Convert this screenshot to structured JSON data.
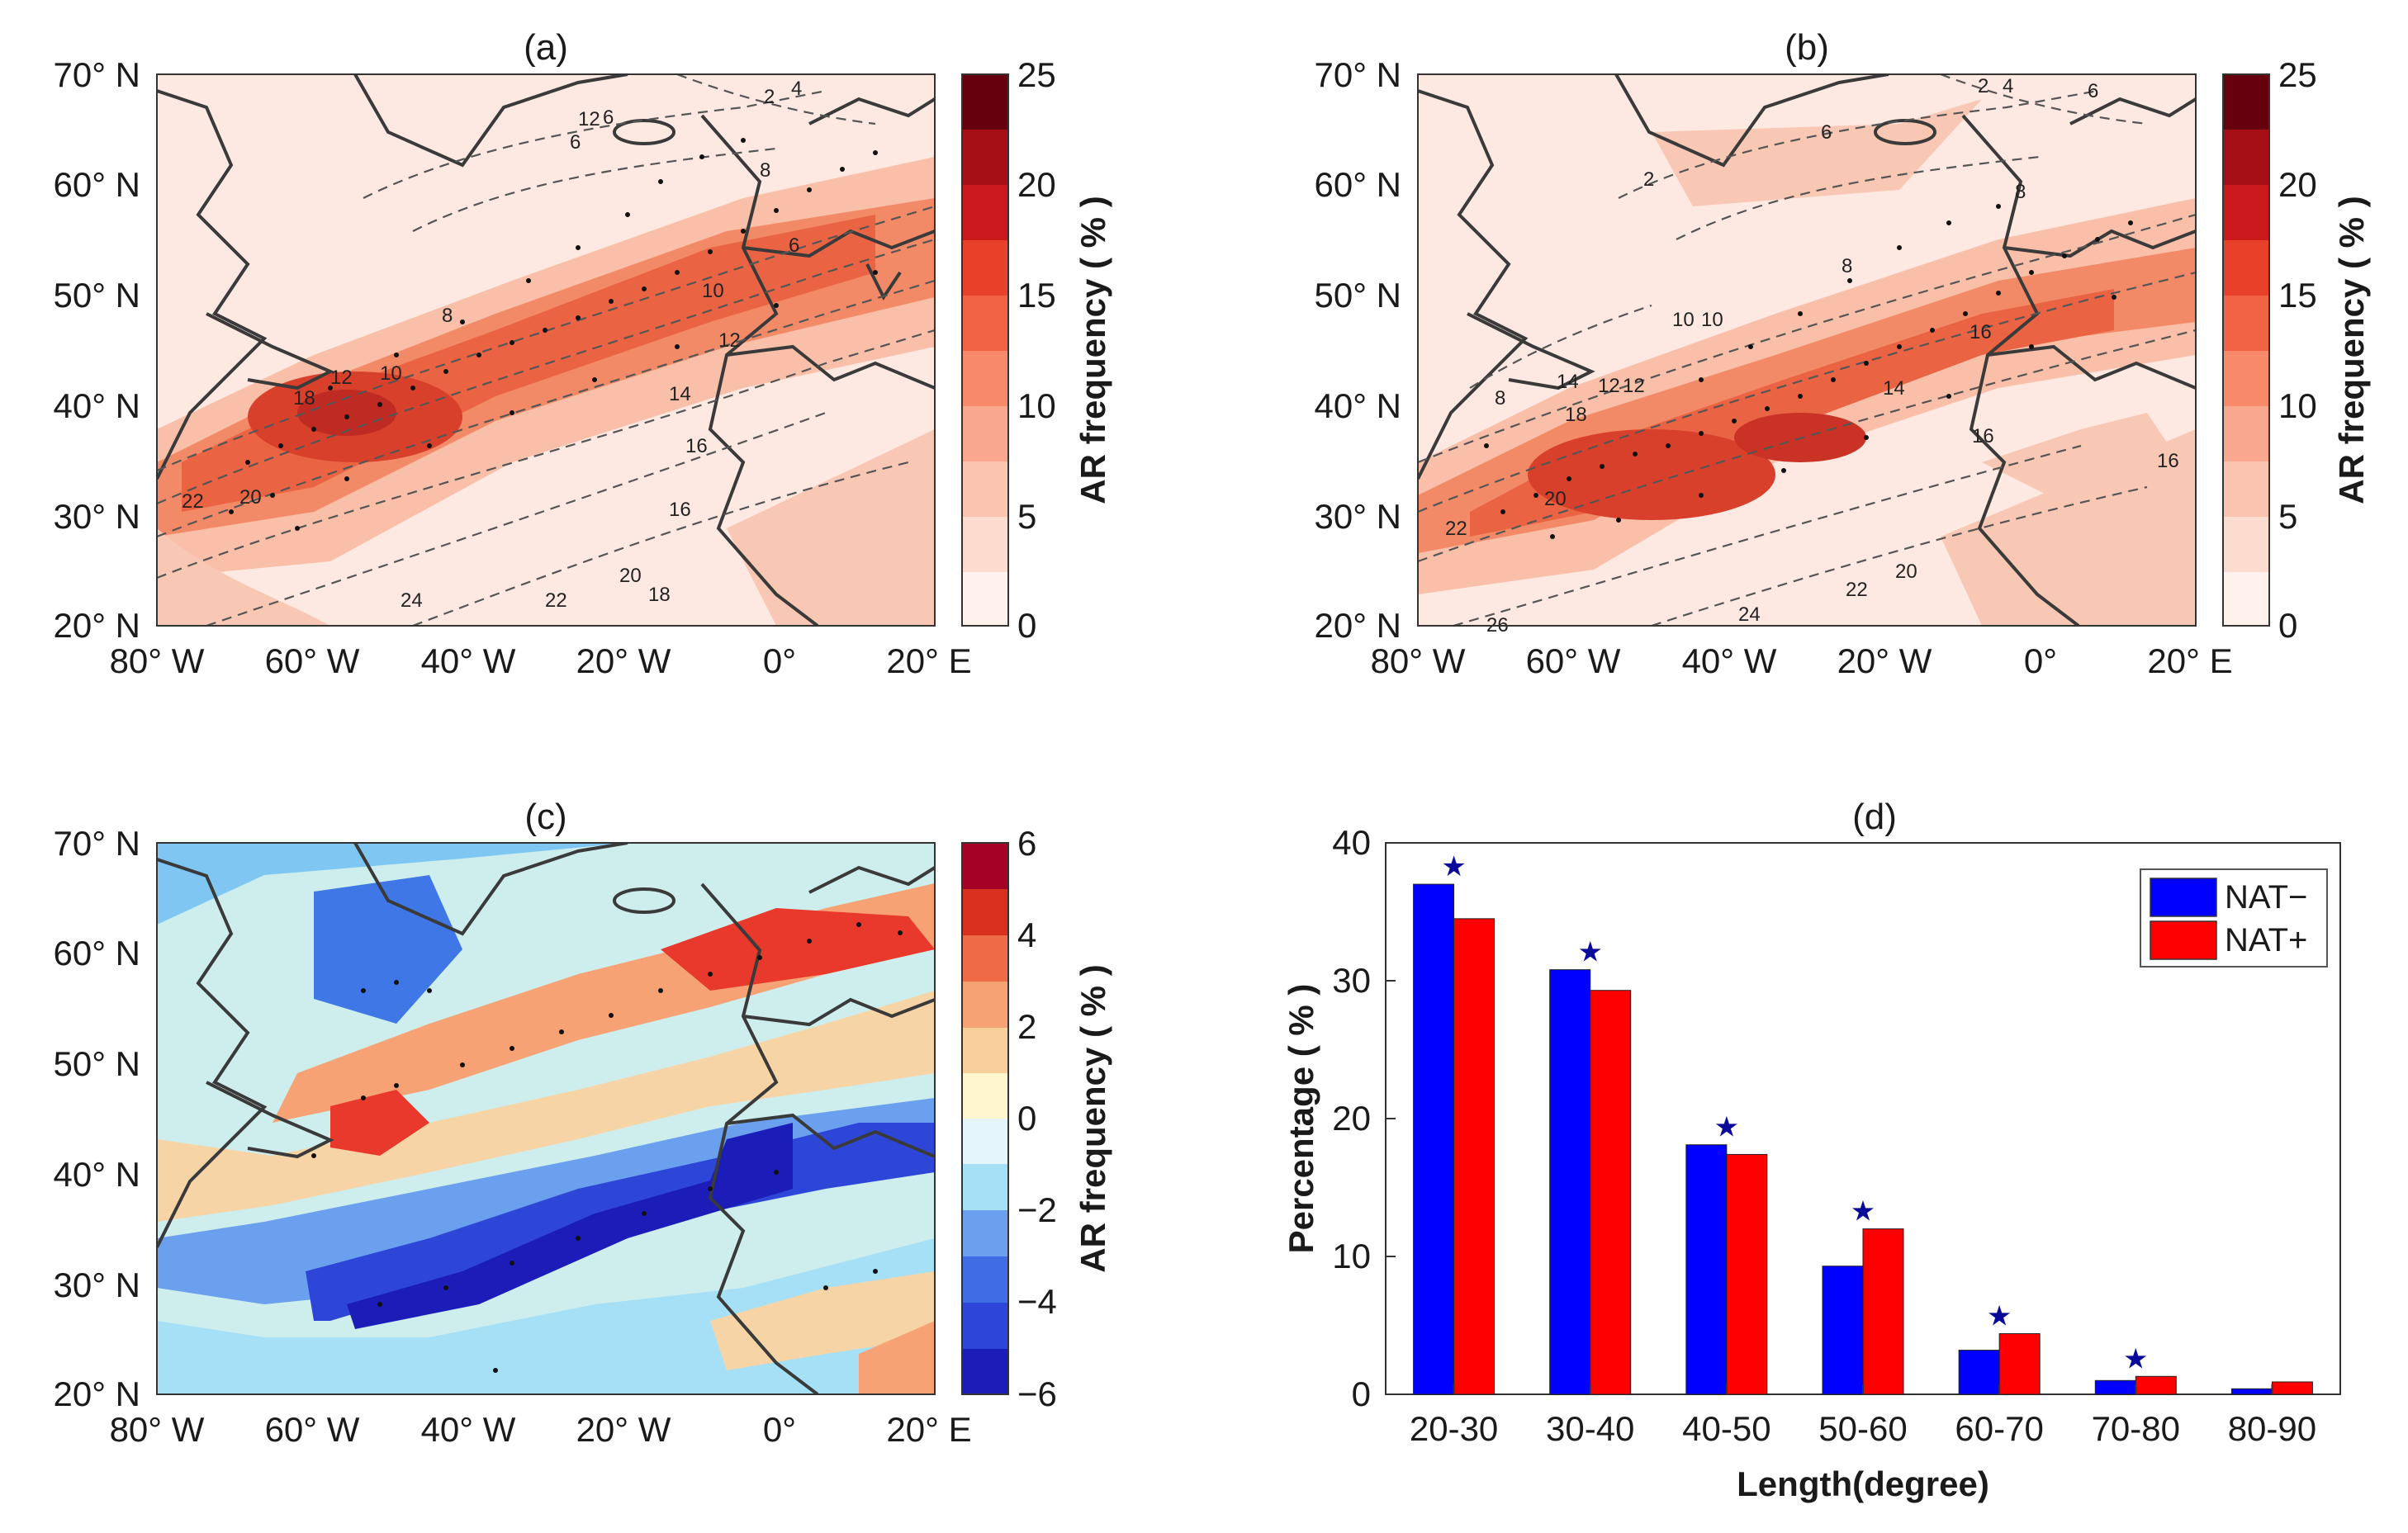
{
  "figure": {
    "panels": [
      {
        "id": "a",
        "title": "(a)",
        "colorbar_label": "AR frequency ( % )",
        "colorbar_ticks": [
          "25",
          "20",
          "15",
          "10",
          "5",
          "0"
        ]
      },
      {
        "id": "b",
        "title": "(b)",
        "colorbar_label": "AR frequency ( % )",
        "colorbar_ticks": [
          "25",
          "20",
          "15",
          "10",
          "5",
          "0"
        ]
      },
      {
        "id": "c",
        "title": "(c)",
        "colorbar_label": "AR frequency ( % )",
        "colorbar_ticks": [
          "6",
          "4",
          "2",
          "0",
          "−2",
          "−4",
          "−6"
        ]
      }
    ],
    "lat_ticks": [
      "70° N",
      "60° N",
      "50° N",
      "40° N",
      "30° N",
      "20° N"
    ],
    "lon_ticks": [
      "80° W",
      "60° W",
      "40° W",
      "20° W",
      "0°",
      "20° E"
    ],
    "contour_labels_a": [
      "2",
      "4",
      "6",
      "6",
      "8",
      "12",
      "6",
      "10",
      "12",
      "14",
      "16",
      "18",
      "20",
      "22",
      "24",
      "22",
      "20",
      "18",
      "8",
      "16",
      "12",
      "10"
    ],
    "contour_labels_b": [
      "2",
      "4",
      "6",
      "6",
      "2",
      "8",
      "8",
      "10",
      "12",
      "14",
      "16",
      "18",
      "20",
      "22",
      "24",
      "22",
      "20",
      "16",
      "26",
      "10",
      "8",
      "12",
      "14",
      "16"
    ]
  },
  "chart_data": [
    {
      "type": "heatmap",
      "panel": "(a)",
      "title": "(a)",
      "description_variable": "AR frequency ( % )",
      "colorbar_range": [
        0,
        25
      ],
      "lon_range": [
        -80,
        20
      ],
      "lat_range": [
        20,
        70
      ]
    },
    {
      "type": "heatmap",
      "panel": "(b)",
      "title": "(b)",
      "description_variable": "AR frequency ( % )",
      "colorbar_range": [
        0,
        25
      ],
      "lon_range": [
        -80,
        20
      ],
      "lat_range": [
        20,
        70
      ]
    },
    {
      "type": "heatmap",
      "panel": "(c)",
      "title": "(c)",
      "description_variable": "AR frequency ( % )",
      "colorbar_range": [
        -6,
        6
      ],
      "lon_range": [
        -80,
        20
      ],
      "lat_range": [
        20,
        70
      ]
    },
    {
      "type": "bar",
      "title": "(d)",
      "xlabel": "Length(degree)",
      "ylabel": "Percentage ( % )",
      "ylim": [
        0,
        40
      ],
      "yticks": [
        "0",
        "10",
        "20",
        "30",
        "40"
      ],
      "categories": [
        "20-30",
        "30-40",
        "40-50",
        "50-60",
        "60-70",
        "70-80",
        "80-90"
      ],
      "series": [
        {
          "name": "NAT−",
          "color": "#0000ff",
          "values": [
            37.0,
            30.8,
            18.1,
            9.3,
            3.2,
            1.0,
            0.4
          ]
        },
        {
          "name": "NAT+",
          "color": "#ff0000",
          "values": [
            34.5,
            29.3,
            17.4,
            12.0,
            4.4,
            1.3,
            0.9
          ]
        }
      ],
      "significance_marker": "★",
      "significant_categories": [
        "20-30",
        "30-40",
        "40-50",
        "50-60",
        "60-70",
        "70-80"
      ]
    }
  ]
}
